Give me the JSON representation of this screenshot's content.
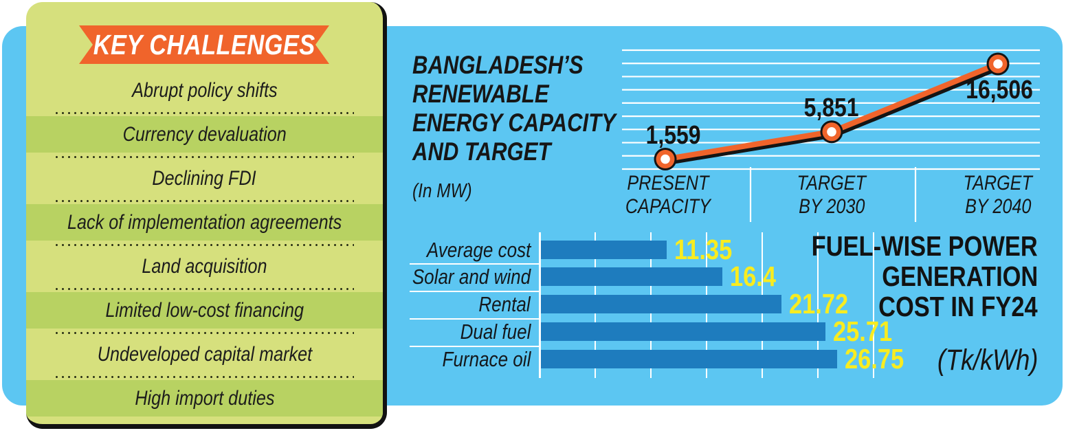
{
  "chart_data": [
    {
      "type": "line",
      "title": "BANGLADESH’S RENEWABLE ENERGY CAPACITY AND TARGET",
      "title_lines": [
        "BANGLADESH’S",
        "RENEWABLE",
        "ENERGY CAPACITY",
        "AND TARGET"
      ],
      "unit_label": "(In MW)",
      "categories": [
        "PRESENT CAPACITY",
        "TARGET BY 2030",
        "TARGET BY 2040"
      ],
      "x_tick_lines": [
        [
          "PRESENT",
          "CAPACITY"
        ],
        [
          "TARGET",
          "BY 2030"
        ],
        [
          "TARGET",
          "BY 2040"
        ]
      ],
      "values": [
        1559,
        5851,
        16506
      ],
      "value_labels": [
        "1,559",
        "5,851",
        "16,506"
      ],
      "ylim": [
        0,
        18000
      ],
      "grid": "horizontal-white-lines",
      "legend": "none",
      "line_color": "#f0642b",
      "marker_style": "orange-circle-black-ring-white-core"
    },
    {
      "type": "bar",
      "orientation": "horizontal",
      "title": "FUEL-WISE POWER GENERATION COST IN FY24",
      "title_lines": [
        "FUEL-WISE POWER",
        "GENERATION",
        "COST IN FY24"
      ],
      "unit_label": "(Tk/kWh)",
      "categories": [
        "Average cost",
        "Solar and wind",
        "Rental",
        "Dual fuel",
        "Furnace oil"
      ],
      "values": [
        11.35,
        16.4,
        21.72,
        25.71,
        26.75
      ],
      "value_labels": [
        "11.35",
        "16.4",
        "21.72",
        "25.71",
        "26.75"
      ],
      "xlim": [
        0,
        30
      ],
      "grid": "vertical-white-lines-every-5",
      "legend": "none",
      "bar_color": "#1e7cbe",
      "value_color": "#f8ec20"
    }
  ],
  "key_challenges": {
    "banner": "KEY CHALLENGES",
    "items": [
      "Abrupt policy shifts",
      "Currency devaluation",
      "Declining FDI",
      "Lack of implementation agreements",
      "Land acquisition",
      "Limited low-cost financing",
      "Undeveloped capital market",
      "High import duties"
    ]
  },
  "colors": {
    "panel_blue": "#5cc6f2",
    "card_green": "#d6e07d",
    "card_band_green": "#b8d262",
    "banner_orange": "#f0642b",
    "line_orange": "#f0642b",
    "bar_blue": "#1e7cbe",
    "accent_yellow": "#f8ec20",
    "text_dark": "#161616",
    "grid_white": "#ffffff"
  }
}
